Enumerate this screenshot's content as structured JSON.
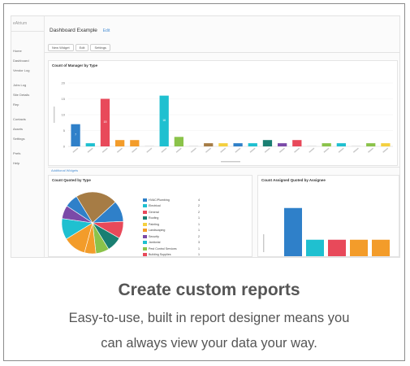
{
  "app": {
    "sidebar": {
      "top": "eAtrium",
      "items": [
        "Home",
        "Dashboard",
        "Vendor Log",
        "Jobs Log",
        "Site Details",
        "Rep",
        "Contacts",
        "Assets",
        "Settings",
        "Prefs",
        "Help"
      ]
    },
    "dashboard": {
      "title": "Dashboard Example",
      "title_link": "Edit",
      "buttons": [
        "New Widget",
        "Edit",
        "Settings"
      ]
    },
    "strip_label": "Additional Widgets"
  },
  "colors": {
    "teal": "#1fc0d0",
    "blue": "#2f80c9",
    "red": "#e8495a",
    "orange": "#f39c2a",
    "green": "#8bc34a",
    "purple": "#7b4aa8",
    "brown": "#a67c45",
    "dark_teal": "#1a7f72",
    "yellow": "#f4d03f",
    "text": "#555555"
  },
  "chart_data": [
    {
      "type": "bar",
      "title": "Count of Manager by Type",
      "ylabel": "",
      "xlabel": "",
      "ylim": [
        0,
        20
      ],
      "yticks": [
        0,
        5,
        10,
        15,
        20
      ],
      "values": [
        7,
        1,
        15,
        2,
        2,
        0,
        16,
        3,
        0,
        1,
        1,
        1,
        1,
        2,
        1,
        2,
        0,
        1,
        1,
        0,
        1,
        1
      ],
      "bar_colors": [
        "#2f80c9",
        "#1fc0d0",
        "#e8495a",
        "#f39c2a",
        "#f39c2a",
        "#e9e9e9",
        "#1fc0d0",
        "#8bc34a",
        "#e9e9e9",
        "#a67c45",
        "#f4d03f",
        "#2f80c9",
        "#1fc0d0",
        "#1a7f72",
        "#7b4aa8",
        "#e8495a",
        "#e9e9e9",
        "#8bc34a",
        "#1fc0d0",
        "#e9e9e9",
        "#8bc34a",
        "#f4d03f"
      ],
      "data_labels": [
        "7",
        "",
        "15",
        "",
        "",
        "",
        "16",
        "",
        "",
        "",
        "",
        "",
        "",
        "",
        "",
        "",
        "",
        "",
        "",
        "",
        "",
        ""
      ]
    },
    {
      "type": "pie",
      "title": "Count Quoted by Type",
      "slices": [
        22,
        11,
        9,
        8,
        7,
        6,
        12,
        11,
        7,
        7
      ],
      "colors": [
        "#a67c45",
        "#2f80c9",
        "#e8495a",
        "#1a7f72",
        "#8bc34a",
        "#f39c2a",
        "#f39c2a",
        "#1fc0d0",
        "#7b4aa8",
        "#2f80c9"
      ],
      "legend_entries": [
        "HVAC/Plumbing",
        "Electrical",
        "General",
        "Roofing",
        "Painting",
        "Landscaping",
        "Security",
        "Janitorial",
        "Pest Control Services",
        "Building Supplies"
      ],
      "legend_values": [
        "4",
        "2",
        "2",
        "1",
        "1",
        "1",
        "2",
        "3",
        "1",
        "1"
      ],
      "legend_colors": [
        "#2f80c9",
        "#1fc0d0",
        "#e8495a",
        "#1a7f72",
        "#f4d03f",
        "#f39c2a",
        "#7b4aa8",
        "#1fc0d0",
        "#8bc34a",
        "#e8495a"
      ]
    },
    {
      "type": "bar",
      "title": "Count Assigned Quoted by Assignee",
      "ylim": [
        0,
        8
      ],
      "values": [
        7,
        3,
        3,
        3,
        3
      ],
      "colors": [
        "#2f80c9",
        "#1fc0d0",
        "#e8495a",
        "#f39c2a",
        "#f39c2a"
      ]
    }
  ],
  "footer": {
    "heading": "Create custom reports",
    "line1": "Easy-to-use, built in report designer means you",
    "line2": "can always view your data your way."
  }
}
